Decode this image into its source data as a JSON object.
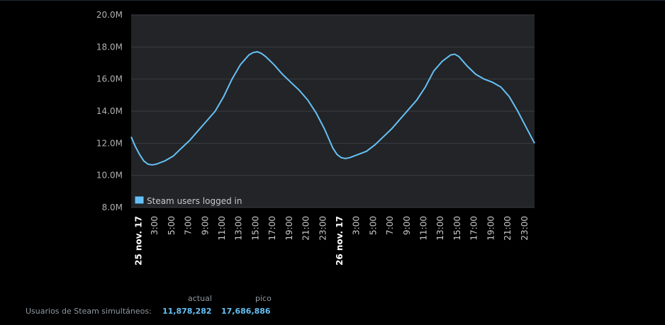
{
  "chart_data": {
    "type": "line",
    "yticks": [
      "20.0M",
      "18.0M",
      "16.0M",
      "14.0M",
      "12.0M",
      "10.0M",
      "8.0M"
    ],
    "ylim": [
      8000000,
      20000000
    ],
    "xticks": [
      "25 nov. 17",
      "3:00",
      "5:00",
      "7:00",
      "9:00",
      "11:00",
      "13:00",
      "15:00",
      "17:00",
      "19:00",
      "21:00",
      "23:00",
      "26 nov. 17",
      "3:00",
      "5:00",
      "7:00",
      "9:00",
      "11:00",
      "13:00",
      "15:00",
      "17:00",
      "19:00",
      "21:00",
      "23:00"
    ],
    "legend_position": "bottom-left inside plot",
    "colors": {
      "plot_background": "#222427",
      "line": "#66c0f4",
      "grid": "#3a3d42"
    },
    "series": [
      {
        "name": "Steam users logged in",
        "x_hours": [
          0,
          0.5,
          1,
          1.5,
          2,
          2.5,
          3,
          3.5,
          4,
          5,
          6,
          7,
          8,
          9,
          10,
          11,
          12,
          13,
          14,
          14.5,
          15,
          15.5,
          16,
          17,
          18,
          19,
          20,
          21,
          22,
          23,
          24,
          24.5,
          25,
          25.5,
          26,
          27,
          28,
          29,
          30,
          31,
          32,
          33,
          34,
          35,
          36,
          37,
          38,
          38.5,
          39,
          39.5,
          40,
          41,
          42,
          43,
          44,
          45,
          46,
          47,
          48
        ],
        "values": [
          12400000,
          11800000,
          11300000,
          10900000,
          10700000,
          10650000,
          10700000,
          10800000,
          10900000,
          11200000,
          11700000,
          12200000,
          12800000,
          13400000,
          14000000,
          14900000,
          16000000,
          16900000,
          17500000,
          17650000,
          17700000,
          17600000,
          17400000,
          16900000,
          16300000,
          15800000,
          15300000,
          14700000,
          13900000,
          12900000,
          11700000,
          11300000,
          11100000,
          11050000,
          11100000,
          11300000,
          11500000,
          11900000,
          12400000,
          12900000,
          13500000,
          14100000,
          14700000,
          15500000,
          16500000,
          17100000,
          17500000,
          17550000,
          17400000,
          17100000,
          16800000,
          16300000,
          16000000,
          15800000,
          15500000,
          14900000,
          14000000,
          13000000,
          12000000
        ]
      }
    ]
  },
  "stats": {
    "header_current": "actual",
    "header_peak": "pico",
    "label": "Usuarios de Steam simultáneos:",
    "current_value": "11,878,282",
    "peak_value": "17,686,886"
  }
}
